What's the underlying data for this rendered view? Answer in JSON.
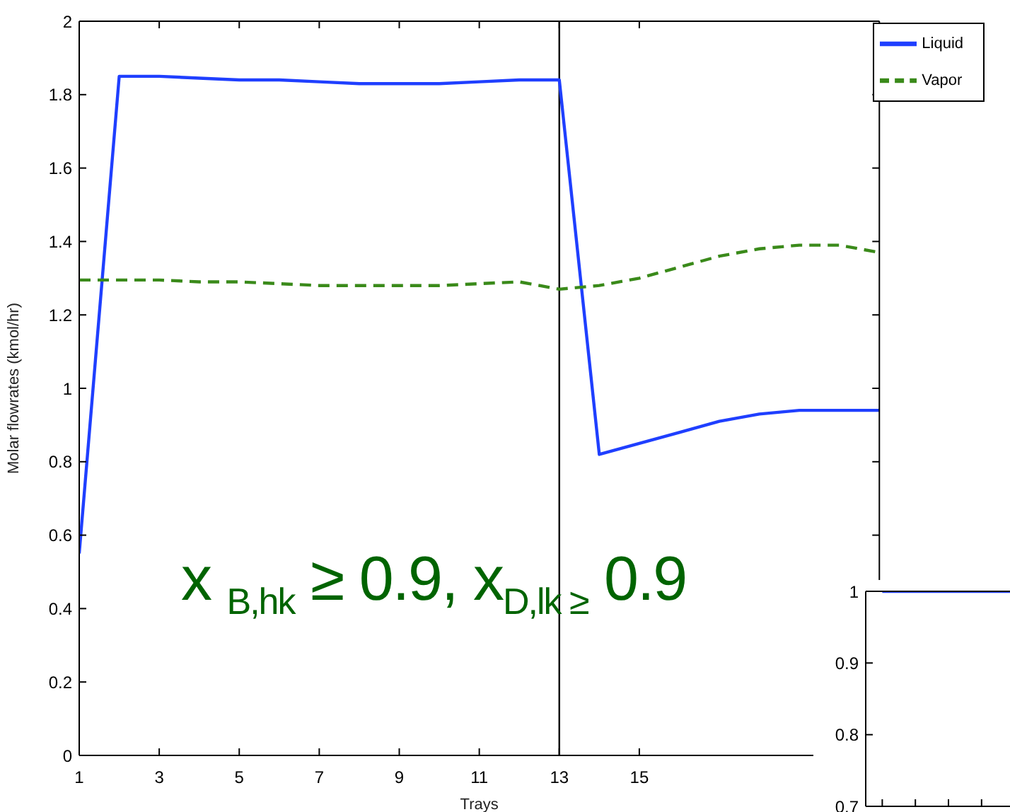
{
  "chart_data": [
    {
      "type": "line",
      "xlabel": "Trays",
      "ylabel": "Molar flowrates (kmol/hr)",
      "x": [
        1,
        2,
        3,
        4,
        5,
        6,
        7,
        8,
        9,
        10,
        11,
        12,
        13,
        14,
        15,
        16,
        17,
        18,
        19,
        20,
        21
      ],
      "series": [
        {
          "name": "Liquid",
          "color": "#1f3fff",
          "line_style": "solid",
          "values": [
            0.55,
            1.85,
            1.85,
            1.845,
            1.84,
            1.84,
            1.835,
            1.83,
            1.83,
            1.83,
            1.835,
            1.84,
            1.84,
            0.82,
            0.85,
            0.88,
            0.91,
            0.93,
            0.94,
            0.94,
            0.94
          ]
        },
        {
          "name": "Vapor",
          "color": "#3a8a1a",
          "line_style": "dashed",
          "values": [
            1.295,
            1.295,
            1.295,
            1.29,
            1.29,
            1.285,
            1.28,
            1.28,
            1.28,
            1.28,
            1.285,
            1.29,
            1.27,
            1.28,
            1.3,
            1.33,
            1.36,
            1.38,
            1.39,
            1.39,
            1.37
          ]
        }
      ],
      "xlim": [
        1,
        21
      ],
      "xticks": [
        1,
        3,
        5,
        7,
        9,
        11,
        13,
        15
      ],
      "ylim": [
        0,
        2
      ],
      "yticks": [
        0,
        0.2,
        0.4,
        0.6,
        0.8,
        1,
        1.2,
        1.4,
        1.6,
        1.8,
        2
      ],
      "ref_lines": [
        {
          "axis": "x",
          "value": 13,
          "color": "#000000"
        }
      ],
      "annotations": [
        "x $_{B,hk}$ ≥ 0.9, x$_{D,lk ≥}$ 0.9"
      ],
      "legend": "top right",
      "marker": "none",
      "grid": false
    },
    {
      "type": "line",
      "categories": [
        null,
        null,
        null,
        null,
        null
      ],
      "series": [
        {
          "color": "#1f3fff",
          "values": [
            1,
            1,
            1,
            1,
            1
          ]
        }
      ],
      "ylim": [
        0.7,
        1
      ],
      "yticks": [
        0.7,
        0.8,
        0.9,
        1
      ],
      "tick_labels": "y",
      "marker": "none",
      "grid": false
    }
  ]
}
